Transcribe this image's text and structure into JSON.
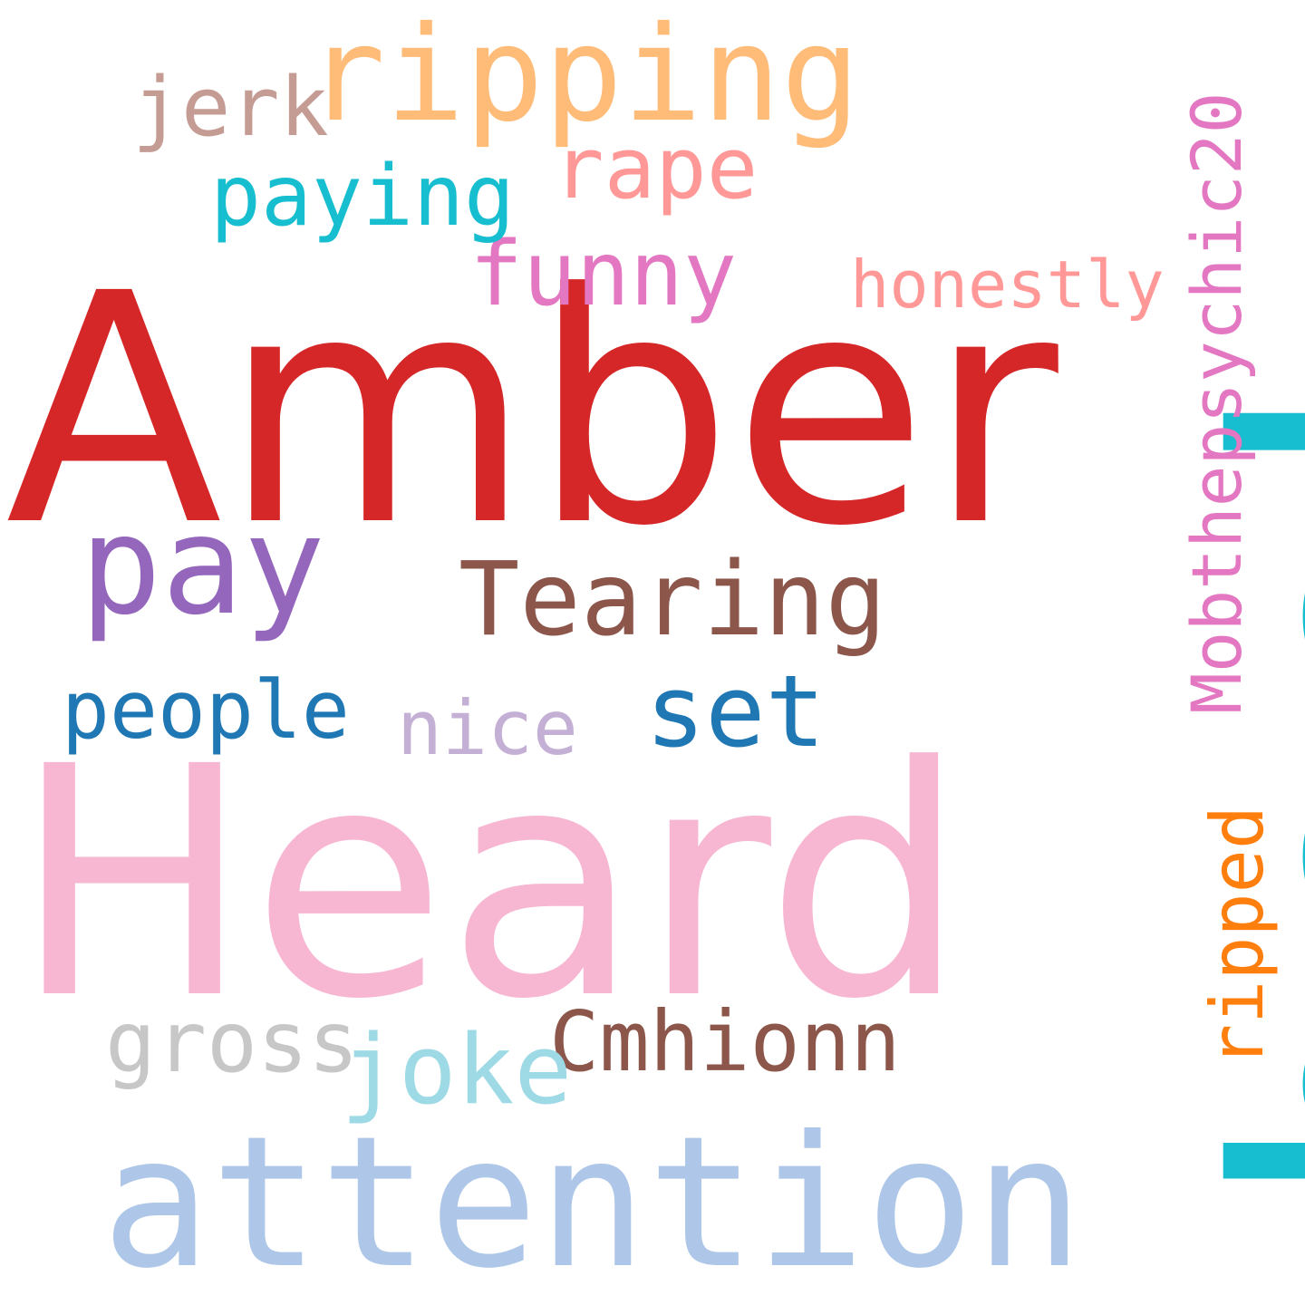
{
  "words": {
    "book": {
      "text": "book",
      "color": "#17becf"
    },
    "amber": {
      "text": "Amber",
      "color": "#d62728"
    },
    "heard": {
      "text": "Heard",
      "color": "#f7b6d2"
    },
    "attention": {
      "text": "attention",
      "color": "#aec7e8"
    },
    "ripping": {
      "text": "ripping",
      "color": "#ffbb78"
    },
    "mobthep": {
      "text": "Mobthepsychic20",
      "color": "#e377c2"
    },
    "tearing": {
      "text": "Tearing",
      "color": "#8c564b"
    },
    "pay": {
      "text": "pay",
      "color": "#9467bd"
    },
    "set": {
      "text": "set",
      "color": "#1f77b4"
    },
    "funny": {
      "text": "funny",
      "color": "#e377c2"
    },
    "rape": {
      "text": "rape",
      "color": "#ff9896"
    },
    "paying": {
      "text": "paying",
      "color": "#17becf"
    },
    "jerk": {
      "text": "jerk",
      "color": "#c49c94"
    },
    "honestly": {
      "text": "honestly",
      "color": "#ff9896"
    },
    "people": {
      "text": "people",
      "color": "#1f77b4"
    },
    "nice": {
      "text": "nice",
      "color": "#c5b0d5"
    },
    "ripped": {
      "text": "ripped",
      "color": "#ff7f0e"
    },
    "cmhionn": {
      "text": "Cmhionn",
      "color": "#8c564b"
    },
    "gross": {
      "text": "gross",
      "color": "#c7c7c7"
    },
    "joke": {
      "text": "joke",
      "color": "#9edae5"
    }
  }
}
